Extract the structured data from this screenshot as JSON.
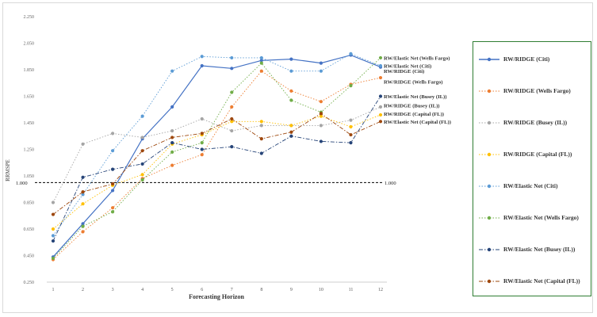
{
  "chart_data": {
    "type": "line",
    "title": "",
    "xlabel": "Forecasting Horizon",
    "ylabel": "RRMSPE",
    "ylim": [
      0.25,
      2.25
    ],
    "yticks": [
      "0.250",
      "0.450",
      "0.650",
      "0.850",
      "1.050",
      "1.250",
      "1.450",
      "1.650",
      "1.850",
      "2.050",
      "2.250"
    ],
    "x": [
      1,
      2,
      3,
      4,
      5,
      6,
      7,
      8,
      9,
      10,
      11,
      12
    ],
    "reference_line": {
      "value": 1.0,
      "label_left": "1.000",
      "label_right": "1.000"
    },
    "grid": false,
    "legend_position": "right",
    "series": [
      {
        "name": "RW/RIDGE (Citi)",
        "color": "#4472c4",
        "dash": "solid",
        "values": [
          0.44,
          0.69,
          0.94,
          1.33,
          1.57,
          1.88,
          1.86,
          1.92,
          1.93,
          1.9,
          1.96,
          1.87
        ]
      },
      {
        "name": "RW/RIDGE (Wells Fargo)",
        "color": "#ed7d31",
        "dash": "dotted",
        "values": [
          0.42,
          0.63,
          0.81,
          1.03,
          1.13,
          1.21,
          1.57,
          1.84,
          1.69,
          1.61,
          1.74,
          1.79
        ]
      },
      {
        "name": "RW/RIDGE (Busey (IL))",
        "color": "#a5a5a5",
        "dash": "dotted",
        "values": [
          0.85,
          1.29,
          1.37,
          1.34,
          1.39,
          1.48,
          1.39,
          1.43,
          1.43,
          1.43,
          1.47,
          1.57
        ]
      },
      {
        "name": "RW/RIDGE (Capital (FL))",
        "color": "#ffc000",
        "dash": "dotted",
        "values": [
          0.65,
          0.84,
          0.98,
          1.06,
          1.29,
          1.36,
          1.46,
          1.46,
          1.43,
          1.5,
          1.42,
          1.51
        ]
      },
      {
        "name": "RW/Elastic Net (Citi)",
        "color": "#5b9bd5",
        "dash": "dotted",
        "values": [
          0.6,
          0.91,
          1.24,
          1.5,
          1.84,
          1.95,
          1.94,
          1.94,
          1.84,
          1.84,
          1.97,
          1.88
        ]
      },
      {
        "name": "RW/Elastic Net (Wells Fargo)",
        "color": "#70ad47",
        "dash": "dotted",
        "values": [
          0.43,
          0.67,
          0.78,
          1.02,
          1.23,
          1.3,
          1.68,
          1.9,
          1.62,
          1.53,
          1.73,
          1.94
        ]
      },
      {
        "name": "RW/Elastic Net (Busey (IL))",
        "color": "#264478",
        "dash": "dashdot",
        "values": [
          0.56,
          1.04,
          1.1,
          1.14,
          1.3,
          1.25,
          1.27,
          1.22,
          1.35,
          1.31,
          1.3,
          1.65
        ]
      },
      {
        "name": "RW/Elastic Net (Capital (FL))",
        "color": "#9e480e",
        "dash": "dashdot",
        "values": [
          0.76,
          0.93,
          0.99,
          1.24,
          1.34,
          1.37,
          1.48,
          1.33,
          1.38,
          1.52,
          1.36,
          1.46
        ]
      }
    ],
    "end_labels": [
      {
        "text": "RW/Elastic Net (Wells Fargo)",
        "value": 1.94
      },
      {
        "text": "RW/Elastic Net (Citi)",
        "value": 1.88
      },
      {
        "text": "RW/RIDGE (Citi)",
        "value": 1.84
      },
      {
        "text": "RW/RIDGE (Wells Fargo)",
        "value": 1.76
      },
      {
        "text": "RW/Elastic Net (Busey (IL))",
        "value": 1.65
      },
      {
        "text": "RW/RIDGE (Busey (IL))",
        "value": 1.58
      },
      {
        "text": "RW/RIDGE (Capital (FL))",
        "value": 1.52
      },
      {
        "text": "RW/Elastic Net (Capital (FL))",
        "value": 1.46
      }
    ]
  }
}
